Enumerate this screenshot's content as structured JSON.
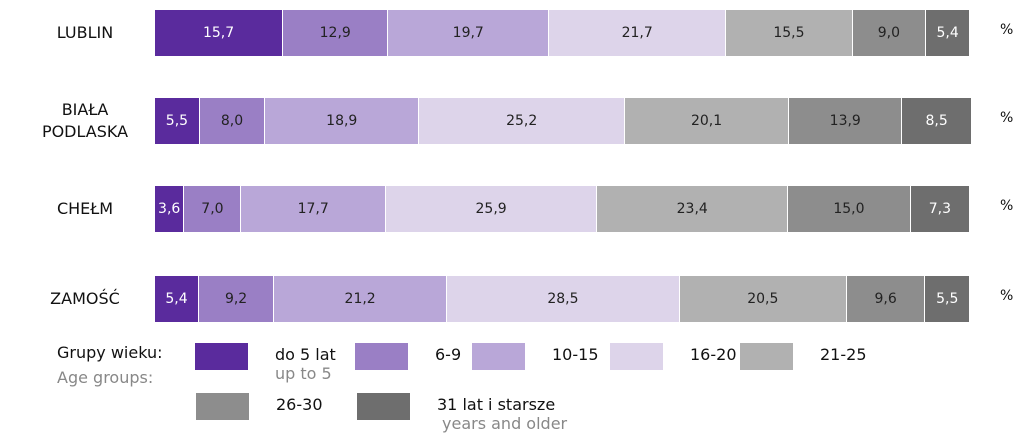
{
  "chart_data": {
    "type": "stacked_barh",
    "categories": [
      "LUBLIN",
      "BIAŁA PODLASKA",
      "CHEŁM",
      "ZAMOŚĆ"
    ],
    "unit": "%",
    "xlim": [
      0,
      100
    ],
    "legend_title": "Grupy wieku:",
    "legend_title_en": "Age groups:",
    "series": [
      {
        "name": "do 5 lat",
        "name_en": "up to 5",
        "color": "#5a2b9d",
        "label_color": "#ffffff",
        "values": [
          15.7,
          5.5,
          3.6,
          5.4
        ],
        "value_labels": [
          "15,7",
          "5,5",
          "3,6",
          "5,4"
        ]
      },
      {
        "name": "6-9",
        "color": "#9a7fc5",
        "label_color": "#222222",
        "values": [
          12.9,
          8.0,
          7.0,
          9.2
        ],
        "value_labels": [
          "12,9",
          "8,0",
          "7,0",
          "9,2"
        ]
      },
      {
        "name": "10-15",
        "color": "#b9a7d8",
        "label_color": "#222222",
        "values": [
          19.7,
          18.9,
          17.7,
          21.2
        ],
        "value_labels": [
          "19,7",
          "18,9",
          "17,7",
          "21,2"
        ]
      },
      {
        "name": "16-20",
        "color": "#ddd4ea",
        "label_color": "#222222",
        "values": [
          21.7,
          25.2,
          25.9,
          28.5
        ],
        "value_labels": [
          "21,7",
          "25,2",
          "25,9",
          "28,5"
        ]
      },
      {
        "name": "21-25",
        "color": "#b1b1b1",
        "label_color": "#222222",
        "values": [
          15.5,
          20.1,
          23.4,
          20.5
        ],
        "value_labels": [
          "15,5",
          "20,1",
          "23,4",
          "20,5"
        ]
      },
      {
        "name": "26-30",
        "color": "#8d8d8d",
        "label_color": "#222222",
        "values": [
          9.0,
          13.9,
          15.0,
          9.6
        ],
        "value_labels": [
          "9,0",
          "13,9",
          "15,0",
          "9,6"
        ]
      },
      {
        "name": "31 lat i starsze",
        "name_en": "years and older",
        "color": "#6e6e6e",
        "label_color": "#ffffff",
        "values": [
          5.4,
          8.5,
          7.3,
          5.5
        ],
        "value_labels": [
          "5,4",
          "8,5",
          "7,3",
          "5,5"
        ]
      }
    ]
  }
}
